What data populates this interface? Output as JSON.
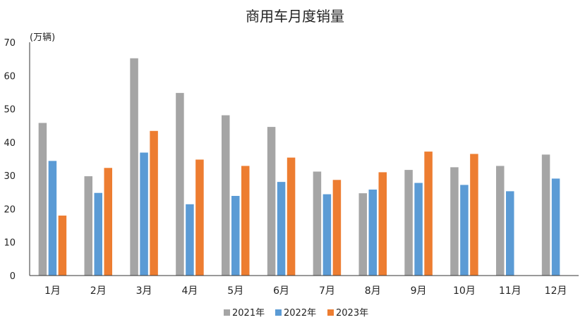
{
  "chart_data": {
    "type": "bar",
    "title": "商用车月度销量",
    "unit_label": "(万辆)",
    "xlabel": "",
    "ylabel": "",
    "ylim": [
      0,
      70
    ],
    "yticks": [
      0,
      10,
      20,
      30,
      40,
      50,
      60,
      70
    ],
    "grid": false,
    "legend_position": "bottom",
    "categories": [
      "1月",
      "2月",
      "3月",
      "4月",
      "5月",
      "6月",
      "7月",
      "8月",
      "9月",
      "10月",
      "11月",
      "12月"
    ],
    "series": [
      {
        "name": "2021年",
        "color": "#a5a5a5",
        "values": [
          45.8,
          29.8,
          65.2,
          54.8,
          48.1,
          44.6,
          31.2,
          24.7,
          31.7,
          32.5,
          32.9,
          36.3
        ]
      },
      {
        "name": "2022年",
        "color": "#5b9bd5",
        "values": [
          34.4,
          24.8,
          36.9,
          21.4,
          23.9,
          28.1,
          24.4,
          25.8,
          27.8,
          27.2,
          25.3,
          29.1
        ]
      },
      {
        "name": "2023年",
        "color": "#ed7d31",
        "values": [
          18.0,
          32.3,
          43.4,
          34.8,
          32.9,
          35.4,
          28.7,
          31.0,
          37.2,
          36.5,
          null,
          null
        ]
      }
    ]
  }
}
